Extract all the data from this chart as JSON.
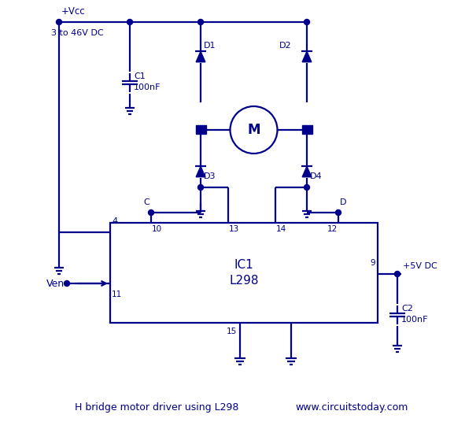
{
  "bg_color": "#ffffff",
  "line_color": "#00008B",
  "text_color": "#00008B",
  "fig_width": 5.77,
  "fig_height": 5.36,
  "dpi": 100,
  "title_text": "H bridge motor driver using L298",
  "website_text": "www.circuitstoday.com",
  "vcc_label": "+Vcc",
  "vcc_sublabel": "3 to 46V DC",
  "vcc_label2": "+5V DC",
  "c1_label": "C1",
  "c1_label2": "100nF",
  "c2_label": "C2",
  "c2_label2": "100nF",
  "ic_label1": "IC1",
  "ic_label2": "L298",
  "d1_label": "D1",
  "d2_label": "D2",
  "d3_label": "D3",
  "d4_label": "D4",
  "motor_label": "M",
  "ven_label": "Ven",
  "pin_c_label": "C",
  "pin_d_label": "D",
  "pin4": "4",
  "pin9": "9",
  "pin10": "10",
  "pin11": "11",
  "pin12": "12",
  "pin13": "13",
  "pin14": "14",
  "pin15": "15"
}
